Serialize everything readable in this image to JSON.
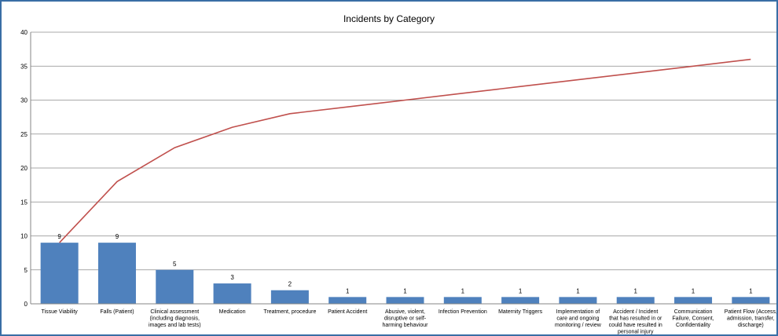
{
  "chart_data": {
    "type": "bar",
    "title": "Incidents by Category",
    "xlabel": "",
    "ylabel": "",
    "ylim": [
      0,
      40
    ],
    "yticks": [
      0,
      5,
      10,
      15,
      20,
      25,
      30,
      35,
      40
    ],
    "grid": true,
    "legend": "none",
    "colors": {
      "bar": "#4f81bd",
      "line": "#c0504d",
      "grid": "#8c8c8c"
    },
    "categories": [
      "Tissue Viability",
      "Falls (Patient)",
      "Clinical assessment (including diagnosis, images and lab tests)",
      "Medication",
      "Treatment, procedure",
      "Patient Accident",
      "Abusive, violent, disruptive or self-harming behaviour",
      "Infection Prevention",
      "Maternity Triggers",
      "Implementation of care and ongoing monitoring / review",
      "Accident / Incident that has resulted in or could have resulted in personal injury",
      "Communication Failure, Consent, Confidentiality",
      "Patient Flow (Access, admission, transfer, discharge)"
    ],
    "category_label_lines": [
      [
        "Tissue Viability"
      ],
      [
        "Falls (Patient)"
      ],
      [
        "Clinical assessment",
        "(including diagnosis,",
        "images and lab tests)"
      ],
      [
        "Medication"
      ],
      [
        "Treatment, procedure"
      ],
      [
        "Patient Accident"
      ],
      [
        "Abusive, violent,",
        "disruptive or self-",
        "harming behaviour"
      ],
      [
        "Infection Prevention"
      ],
      [
        "Maternity Triggers"
      ],
      [
        "Implementation of",
        "care and ongoing",
        "monitoring / review"
      ],
      [
        "Accident / Incident",
        "that has resulted in or",
        "could have resulted in",
        "personal injury"
      ],
      [
        "Communication",
        "Failure, Consent,",
        "Confidentiality"
      ],
      [
        "Patient Flow (Access,",
        "admission, transfer,",
        "discharge)"
      ]
    ],
    "series": [
      {
        "type": "bar",
        "values": [
          9,
          9,
          5,
          3,
          2,
          1,
          1,
          1,
          1,
          1,
          1,
          1,
          1
        ],
        "data_labels": true
      },
      {
        "type": "line",
        "values": [
          9,
          18,
          23,
          26,
          28,
          29,
          30,
          31,
          32,
          33,
          34,
          35,
          36
        ]
      }
    ]
  }
}
